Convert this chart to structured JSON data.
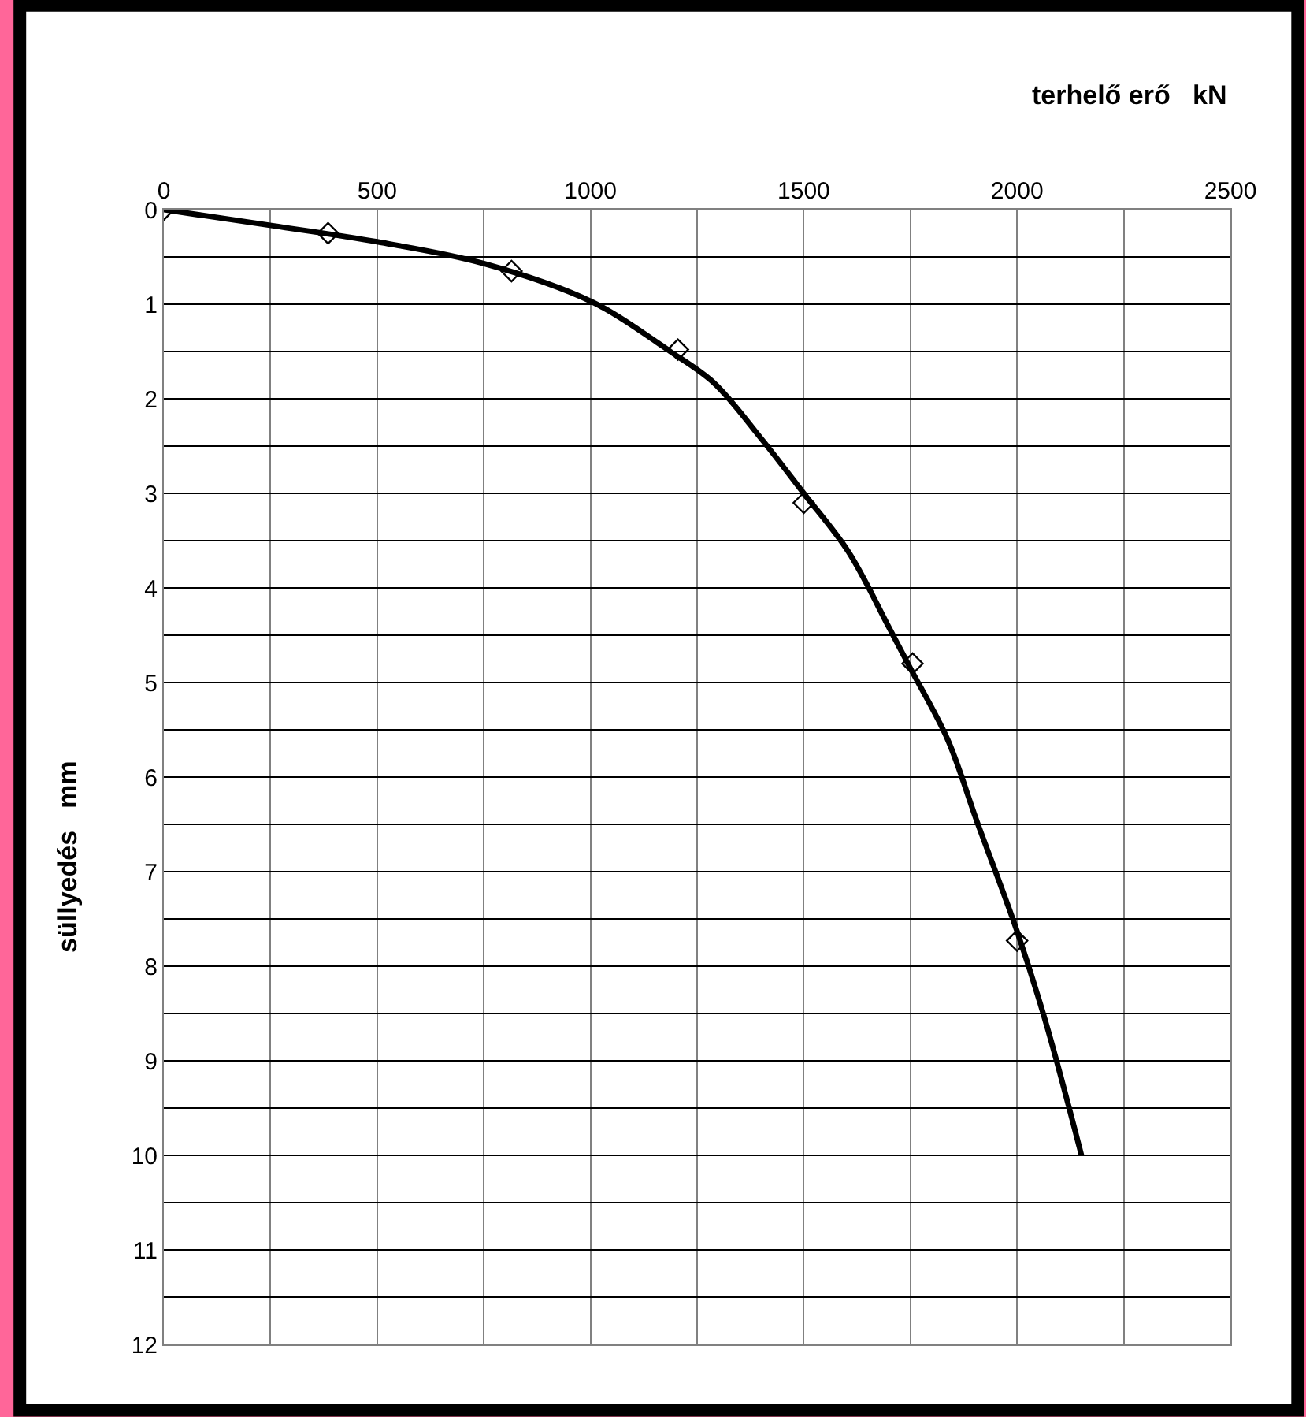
{
  "chart_data": {
    "type": "scatter",
    "xlabel": "terhelő erő   kN",
    "ylabel": "süllyedés   mm",
    "xlim": [
      0,
      2500
    ],
    "ylim": [
      12,
      0
    ],
    "xticks": [
      0,
      {
        "value": 250,
        "label": null
      },
      500,
      {
        "value": 750,
        "label": null
      },
      1000,
      {
        "value": 1250,
        "label": null
      },
      1500,
      {
        "value": 1750,
        "label": null
      },
      2000,
      {
        "value": 2250,
        "label": null
      },
      2500
    ],
    "yticks": [
      0,
      {
        "value": 0.5,
        "label": null
      },
      1,
      {
        "value": 1.5,
        "label": null
      },
      2,
      {
        "value": 2.5,
        "label": null
      },
      3,
      {
        "value": 3.5,
        "label": null
      },
      4,
      {
        "value": 4.5,
        "label": null
      },
      5,
      {
        "value": 5.5,
        "label": null
      },
      6,
      {
        "value": 6.5,
        "label": null
      },
      7,
      {
        "value": 7.5,
        "label": null
      },
      8,
      {
        "value": 8.5,
        "label": null
      },
      9,
      {
        "value": 9.5,
        "label": null
      },
      10,
      {
        "value": 10.5,
        "label": null
      },
      11,
      {
        "value": 11.5,
        "label": null
      },
      12
    ],
    "grid": true,
    "legend": false,
    "series": [
      {
        "type": "line",
        "color": "#000000",
        "marker": "none",
        "x": [
          0,
          255,
          500,
          750,
          1006,
          1155,
          1187,
          1289,
          1400,
          1500,
          1605,
          1700,
          1750,
          1837,
          1906,
          2000,
          2069,
          2151
        ],
        "values": [
          0,
          0.17,
          0.34,
          0.57,
          0.98,
          1.4,
          1.5,
          1.83,
          2.42,
          3.0,
          3.62,
          4.42,
          4.85,
          5.6,
          6.47,
          7.63,
          8.62,
          10.0
        ]
      },
      {
        "color": "#000000",
        "marker": "diamond",
        "x": [
          0,
          385,
          815,
          1205,
          1500,
          1755,
          2000
        ],
        "values": [
          0,
          0.25,
          0.65,
          1.48,
          3.1,
          4.8,
          7.73
        ]
      }
    ]
  }
}
